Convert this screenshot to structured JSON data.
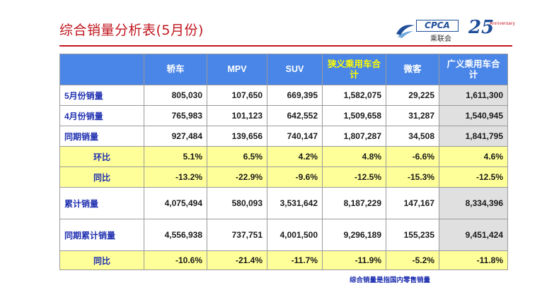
{
  "title": "综合销量分析表(5月份)",
  "logos": {
    "cpca_text": "CPCA",
    "cpca_sub": "乘联会",
    "anniv_num": "25",
    "anniv_text": "Anniversary"
  },
  "table": {
    "columns": [
      "轿车",
      "MPV",
      "SUV",
      "狭义乘用车合计",
      "微客",
      "广义乘用车合计"
    ],
    "rows": [
      {
        "label": "5月份销量",
        "values": [
          "805,030",
          "107,650",
          "669,395",
          "1,582,075",
          "29,225",
          "1,611,300"
        ]
      },
      {
        "label": "4月份销量",
        "values": [
          "765,983",
          "101,123",
          "642,552",
          "1,509,658",
          "31,287",
          "1,540,945"
        ]
      },
      {
        "label": "同期销量",
        "values": [
          "927,484",
          "139,656",
          "740,147",
          "1,807,287",
          "34,508",
          "1,841,795"
        ]
      },
      {
        "label": "环比",
        "values": [
          "5.1%",
          "6.5%",
          "4.2%",
          "4.8%",
          "-6.6%",
          "4.6%"
        ]
      },
      {
        "label": "同比",
        "values": [
          "-13.2%",
          "-22.9%",
          "-9.6%",
          "-12.5%",
          "-15.3%",
          "-12.5%"
        ]
      },
      {
        "label": "累计销量",
        "values": [
          "4,075,494",
          "580,093",
          "3,531,642",
          "8,187,229",
          "147,167",
          "8,334,396"
        ]
      },
      {
        "label": "同期累计销量",
        "values": [
          "4,556,938",
          "737,751",
          "4,001,500",
          "9,296,189",
          "155,235",
          "9,451,424"
        ]
      },
      {
        "label": "同比",
        "values": [
          "-10.6%",
          "-21.4%",
          "-11.7%",
          "-11.9%",
          "-5.2%",
          "-11.8%"
        ]
      }
    ]
  },
  "note": "综合销量是指国内零售销量",
  "colors": {
    "title": "#c0161e",
    "header_bg": "#4a86e8",
    "header_highlight": "#ffff00",
    "row_yellow": "#ffff99",
    "label_blue": "#1f2fb0"
  }
}
